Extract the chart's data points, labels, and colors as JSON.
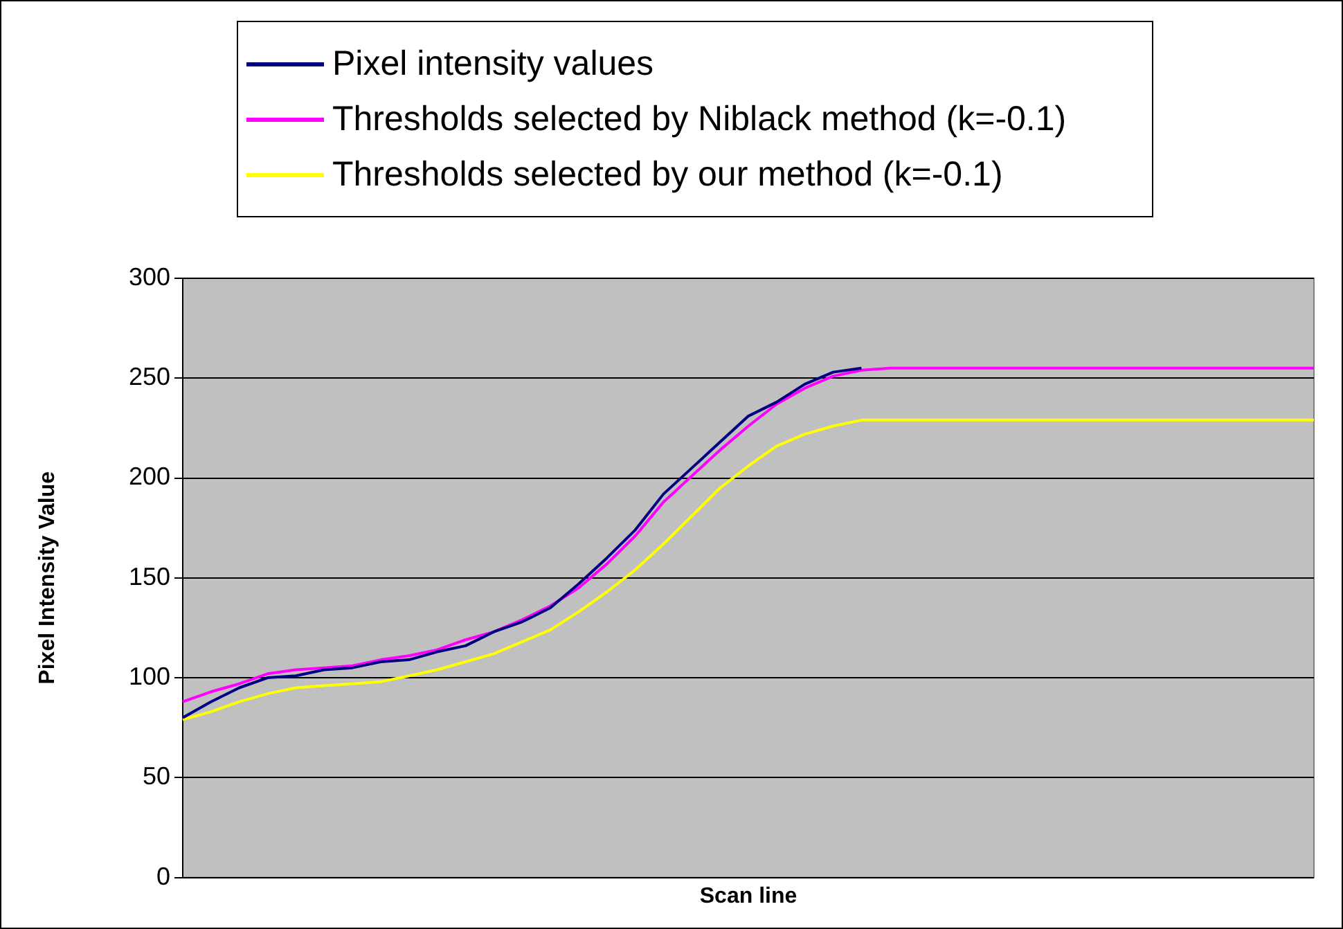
{
  "chart_data": {
    "type": "line",
    "xlabel": "Scan line",
    "ylabel": "Pixel Intensity Value",
    "categories": [
      null,
      null,
      null,
      null,
      null,
      null,
      null,
      null,
      null,
      null,
      null,
      null,
      null,
      null,
      null,
      null,
      null,
      null,
      null,
      null,
      null,
      null,
      null,
      null,
      null,
      null,
      null,
      null,
      null,
      null,
      null,
      null,
      null,
      null,
      null,
      null,
      null,
      null,
      null,
      null,
      null
    ],
    "series": [
      {
        "name": "Pixel intensity values",
        "color": "#000080",
        "values": [
          80,
          88,
          95,
          100,
          101,
          104,
          105,
          108,
          109,
          113,
          116,
          123,
          128,
          135,
          147,
          160,
          174,
          192,
          205,
          218,
          231,
          238,
          247,
          253,
          255,
          null,
          null,
          null,
          null,
          null,
          null,
          null,
          null,
          null,
          null,
          null,
          null,
          null,
          null,
          null,
          null
        ]
      },
      {
        "name": "Thresholds selected by Niblack method (k=-0.1)",
        "color": "#ff00ff",
        "values": [
          88,
          93,
          97,
          102,
          104,
          105,
          106,
          109,
          111,
          114,
          119,
          123,
          129,
          136,
          145,
          157,
          171,
          188,
          201,
          214,
          226,
          237,
          245,
          251,
          254,
          255,
          255,
          255,
          255,
          255,
          255,
          255,
          255,
          255,
          255,
          255,
          255,
          255,
          255,
          255,
          255
        ]
      },
      {
        "name": "Thresholds selected by our method (k=-0.1)",
        "color": "#ffff00",
        "values": [
          79,
          83,
          88,
          92,
          95,
          96,
          97,
          98,
          101,
          104,
          108,
          112,
          118,
          124,
          133,
          143,
          154,
          167,
          181,
          195,
          206,
          216,
          222,
          226,
          229,
          229,
          229,
          229,
          229,
          229,
          229,
          229,
          229,
          229,
          229,
          229,
          229,
          229,
          229,
          229,
          229
        ]
      }
    ],
    "ylim": [
      0,
      300
    ],
    "yticks": [
      0,
      50,
      100,
      150,
      200,
      250,
      300
    ],
    "grid": "y",
    "legend": "top",
    "marker": "none",
    "line_style": "solid"
  }
}
